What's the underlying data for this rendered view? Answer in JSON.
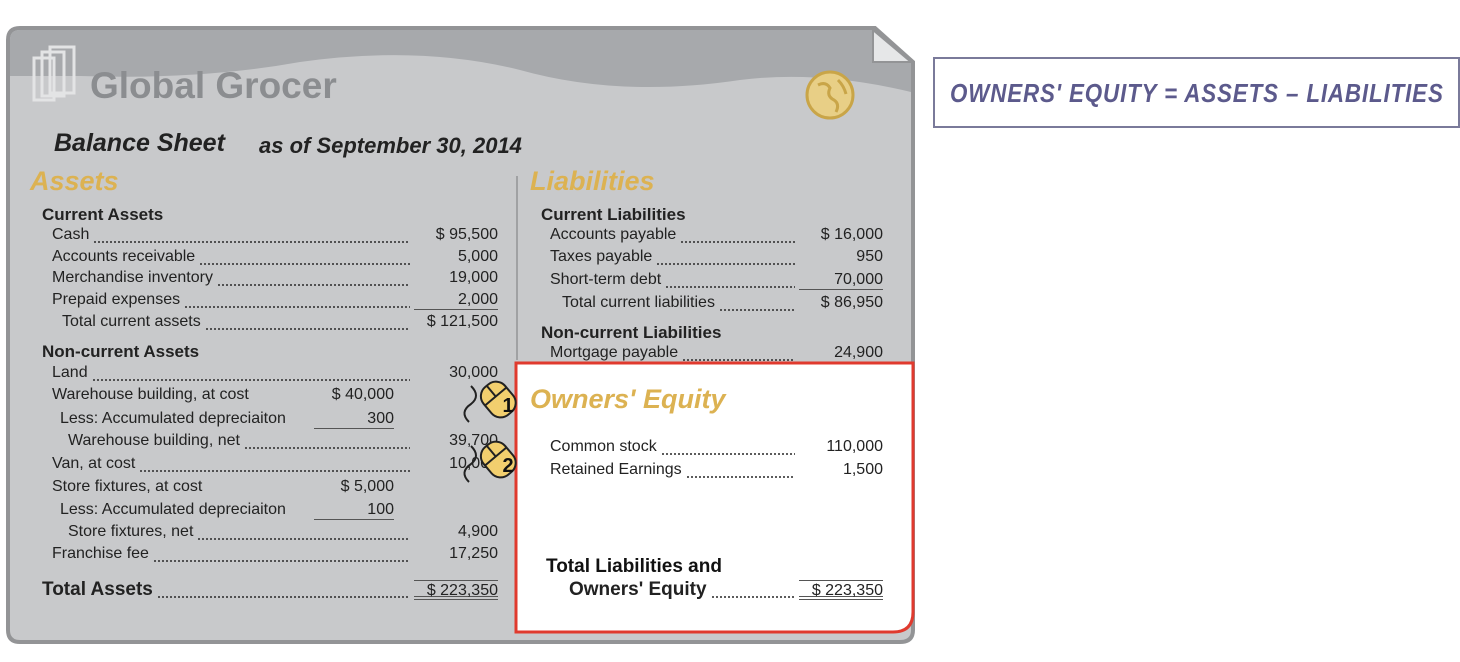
{
  "header": {
    "company": "Global Grocer",
    "title": "Balance Sheet",
    "subtitle": "as of September 30, 2014"
  },
  "formula": "OWNERS' EQUITY = ASSETS – LIABILITIES",
  "assets": {
    "heading": "Assets",
    "current": {
      "heading": "Current Assets",
      "rows": [
        {
          "label": "Cash",
          "amount": "$ 95,500"
        },
        {
          "label": "Accounts receivable",
          "amount": "5,000"
        },
        {
          "label": "Merchandise inventory",
          "amount": "19,000"
        },
        {
          "label": "Prepaid expenses",
          "amount": "2,000"
        }
      ],
      "total": {
        "label": "Total current assets",
        "amount": "$ 121,500"
      }
    },
    "noncurrent": {
      "heading": "Non-current Assets",
      "rows": [
        {
          "label": "Land",
          "amount": "30,000"
        },
        {
          "label": "Warehouse building, at cost",
          "sub": "$ 40,000"
        },
        {
          "label": "Less: Accumulated depreciaiton",
          "sub": "300"
        },
        {
          "label": "Warehouse building, net",
          "amount": "39,700"
        },
        {
          "label": "Van, at cost",
          "amount": "10,000"
        },
        {
          "label": "Store fixtures, at cost",
          "sub": "$ 5,000"
        },
        {
          "label": "Less: Accumulated depreciaiton",
          "sub": "100"
        },
        {
          "label": "Store fixtures, net",
          "amount": "4,900"
        },
        {
          "label": "Franchise fee",
          "amount": "17,250"
        }
      ]
    },
    "total": {
      "label": "Total Assets",
      "amount": "$ 223,350"
    }
  },
  "liabilities": {
    "heading": "Liabilities",
    "current": {
      "heading": "Current Liabilities",
      "rows": [
        {
          "label": "Accounts payable",
          "amount": "$ 16,000"
        },
        {
          "label": "Taxes payable",
          "amount": "950"
        },
        {
          "label": "Short-term debt",
          "amount": "70,000"
        }
      ],
      "total": {
        "label": "Total current liabilities",
        "amount": "$ 86,950"
      }
    },
    "noncurrent": {
      "heading": "Non-current Liabilities",
      "rows": [
        {
          "label": "Mortgage payable",
          "amount": "24,900"
        }
      ]
    }
  },
  "equity": {
    "heading": "Owners' Equity",
    "rows": [
      {
        "label": "Common stock",
        "amount": "110,000"
      },
      {
        "label": "Retained Earnings",
        "amount": "1,500"
      }
    ]
  },
  "grand_total": {
    "line1": "Total Liabilities and",
    "line2": "Owners' Equity",
    "amount": "$ 223,350"
  },
  "markers": [
    "1",
    "2"
  ]
}
